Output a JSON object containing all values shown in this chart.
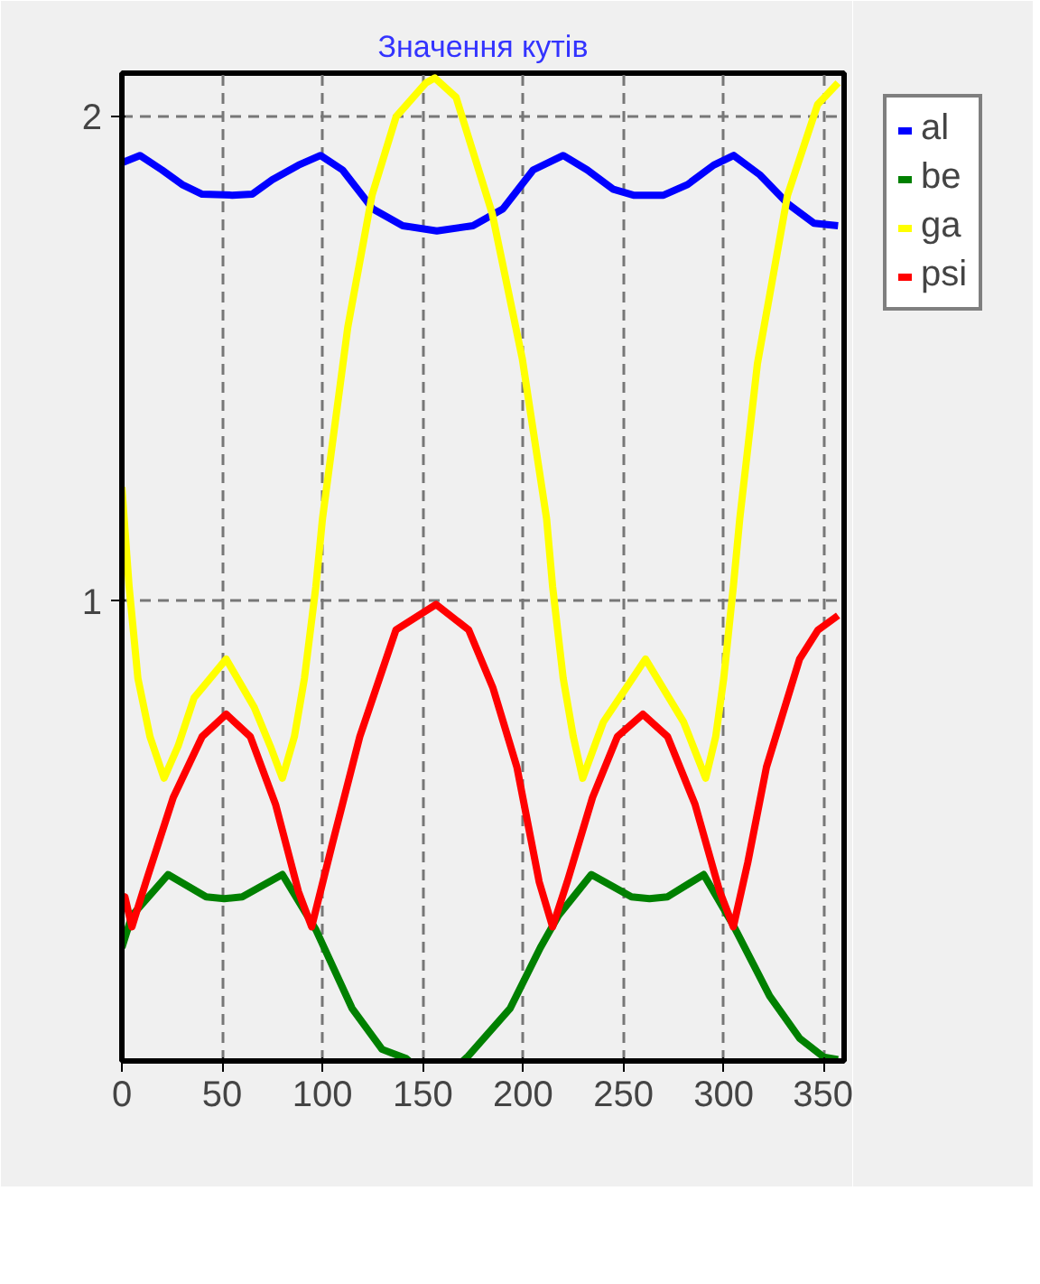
{
  "chart_data": {
    "type": "line",
    "title": "Значення кутів",
    "xlim": [
      0,
      360
    ],
    "xticks": [
      0,
      50,
      100,
      150,
      200,
      250,
      300,
      350
    ],
    "ylim": [
      0.05,
      2.09
    ],
    "yticks": [
      1,
      2
    ],
    "grid": true,
    "legend": "top right",
    "series": [
      {
        "name": "al",
        "color": "#0000ff",
        "x": [
          0,
          9,
          20,
          30,
          40,
          55,
          65,
          75,
          88,
          99,
          110,
          125,
          140,
          157,
          175,
          190,
          205,
          220,
          232,
          245,
          255,
          270,
          282,
          295,
          305,
          318,
          332,
          345,
          357
        ],
        "values": [
          1.905,
          1.92,
          1.89,
          1.86,
          1.84,
          1.838,
          1.84,
          1.87,
          1.9,
          1.92,
          1.89,
          1.81,
          1.775,
          1.764,
          1.775,
          1.81,
          1.89,
          1.92,
          1.89,
          1.85,
          1.838,
          1.838,
          1.86,
          1.9,
          1.92,
          1.88,
          1.82,
          1.78,
          1.775
        ]
      },
      {
        "name": "be",
        "color": "#008000",
        "x": [
          0,
          5,
          23,
          42,
          51,
          60,
          80,
          96.7,
          114.7,
          129.7,
          141.7,
          157,
          172.6,
          193.6,
          208.6,
          217.6,
          234,
          254,
          263,
          272,
          290,
          304.8,
          322.9,
          337.8,
          349.8,
          357
        ],
        "values": [
          0.284,
          0.35,
          0.435,
          0.389,
          0.385,
          0.389,
          0.435,
          0.321,
          0.159,
          0.074,
          0.055,
          null,
          0.06,
          0.159,
          0.284,
          0.35,
          0.435,
          0.389,
          0.385,
          0.389,
          0.435,
          0.33,
          0.184,
          0.097,
          0.058,
          0.053
        ]
      },
      {
        "name": "ga",
        "color": "#ffff00",
        "x": [
          0,
          3.6,
          8,
          14,
          21,
          28,
          36,
          52,
          66,
          74,
          80,
          86,
          91,
          96.7,
          100,
          112.6,
          124.7,
          136.7,
          151.6,
          156,
          166.6,
          184.6,
          199.6,
          211.7,
          214.7,
          220,
          225,
          229.7,
          240,
          261,
          280,
          291,
          296,
          300,
          304.8,
          308,
          316.8,
          331.8,
          346.8,
          357
        ],
        "values": [
          1.235,
          1.03,
          0.84,
          0.72,
          0.634,
          0.7,
          0.8,
          0.88,
          0.78,
          0.7,
          0.634,
          0.72,
          0.84,
          1.03,
          1.17,
          1.565,
          1.838,
          2.0,
          2.07,
          2.08,
          2.04,
          1.8,
          1.5,
          1.17,
          1.03,
          0.84,
          0.72,
          0.634,
          0.75,
          0.88,
          0.75,
          0.634,
          0.72,
          0.84,
          1.03,
          1.17,
          1.49,
          1.838,
          2.025,
          2.07
        ]
      },
      {
        "name": "psi",
        "color": "#ff0000",
        "x": [
          0,
          1.5,
          5,
          12,
          25.6,
          40,
          52,
          64,
          76.6,
          88,
          94.6,
          105,
          118.6,
          136.6,
          156.6,
          172.9,
          185,
          196.9,
          208,
          214.7,
          222,
          234.6,
          247,
          259.7,
          272,
          285.7,
          298,
          304.8,
          312,
          321.3,
          337.8,
          347,
          357
        ],
        "values": [
          0.39,
          0.389,
          0.327,
          0.42,
          0.594,
          0.72,
          0.766,
          0.72,
          0.58,
          0.4,
          0.327,
          0.5,
          0.72,
          0.94,
          0.993,
          0.94,
          0.82,
          0.657,
          0.42,
          0.327,
          0.42,
          0.594,
          0.72,
          0.766,
          0.72,
          0.58,
          0.4,
          0.327,
          0.46,
          0.657,
          0.88,
          0.94,
          0.97
        ]
      }
    ]
  }
}
